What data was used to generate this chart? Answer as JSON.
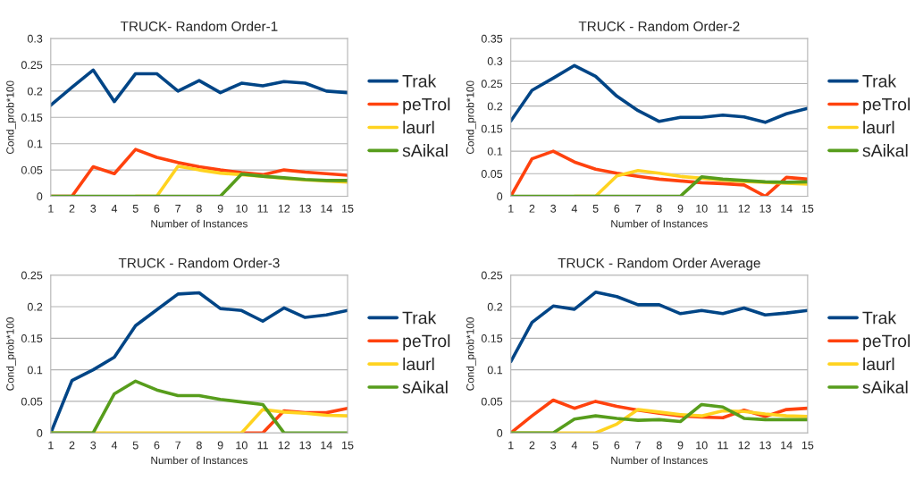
{
  "chart_data": [
    {
      "type": "line",
      "title": "TRUCK- Random Order-1",
      "xlabel": "Number of Instances",
      "ylabel": "Cond_prob*100",
      "categories": [
        "1",
        "2",
        "3",
        "4",
        "5",
        "6",
        "7",
        "8",
        "9",
        "10",
        "11",
        "12",
        "13",
        "14",
        "15"
      ],
      "ylim": [
        0,
        0.3
      ],
      "yticks": [
        0,
        0.05,
        0.1,
        0.15,
        0.2,
        0.25,
        0.3
      ],
      "grid": "y",
      "legend": "right",
      "series": [
        {
          "name": "Trak",
          "color": "#004586",
          "values": [
            0.173,
            0.207,
            0.24,
            0.18,
            0.233,
            0.233,
            0.2,
            0.22,
            0.197,
            0.215,
            0.21,
            0.218,
            0.215,
            0.2,
            0.197
          ]
        },
        {
          "name": "peTrol",
          "color": "#ff420e",
          "values": [
            0,
            0,
            0.056,
            0.043,
            0.089,
            0.074,
            0.064,
            0.056,
            0.05,
            0.045,
            0.041,
            0.05,
            0.046,
            0.043,
            0.04
          ]
        },
        {
          "name": "laurl",
          "color": "#ffd320",
          "values": [
            null,
            null,
            null,
            null,
            0,
            0,
            0.057,
            0.05,
            0.044,
            0.041,
            0.038,
            0.034,
            0.031,
            0.029,
            0.027
          ]
        },
        {
          "name": "sAikal",
          "color": "#579d1c",
          "values": [
            0,
            0,
            0,
            0,
            0,
            0,
            0,
            0,
            0,
            0.042,
            0.038,
            0.035,
            0.032,
            0.03,
            0.03
          ]
        }
      ]
    },
    {
      "type": "line",
      "title": "TRUCK - Random Order-2",
      "xlabel": "Number of Instances",
      "ylabel": "Cond_prob*100",
      "categories": [
        "1",
        "2",
        "3",
        "4",
        "5",
        "6",
        "7",
        "8",
        "9",
        "10",
        "11",
        "12",
        "13",
        "14",
        "15"
      ],
      "ylim": [
        0,
        0.35
      ],
      "yticks": [
        0,
        0.05,
        0.1,
        0.15,
        0.2,
        0.25,
        0.3,
        0.35
      ],
      "grid": "y",
      "legend": "right",
      "series": [
        {
          "name": "Trak",
          "color": "#004586",
          "values": [
            0.167,
            0.235,
            0.262,
            0.29,
            0.266,
            0.222,
            0.19,
            0.166,
            0.175,
            0.175,
            0.18,
            0.176,
            0.164,
            0.183,
            0.195
          ]
        },
        {
          "name": "peTrol",
          "color": "#ff420e",
          "values": [
            0,
            0.083,
            0.1,
            0.076,
            0.06,
            0.051,
            0.044,
            0.038,
            0.034,
            0.03,
            0.028,
            0.025,
            0,
            0.042,
            0.038
          ]
        },
        {
          "name": "laurl",
          "color": "#ffd320",
          "values": [
            null,
            null,
            null,
            0,
            0,
            0.045,
            0.057,
            0.051,
            0.044,
            0.04,
            0.036,
            0.033,
            0.031,
            0.029,
            0.027
          ]
        },
        {
          "name": "sAikal",
          "color": "#579d1c",
          "values": [
            0,
            0,
            0,
            0,
            0,
            0,
            0,
            0,
            0,
            0.043,
            0.038,
            0.035,
            0.032,
            0.031,
            0.032
          ]
        }
      ]
    },
    {
      "type": "line",
      "title": "TRUCK - Random Order-3",
      "xlabel": "Number of Instances",
      "ylabel": "Cond_prob*100",
      "categories": [
        "1",
        "2",
        "3",
        "4",
        "5",
        "6",
        "7",
        "8",
        "9",
        "10",
        "11",
        "12",
        "13",
        "14",
        "15"
      ],
      "ylim": [
        0,
        0.25
      ],
      "yticks": [
        0,
        0.05,
        0.1,
        0.15,
        0.2,
        0.25
      ],
      "grid": "y",
      "legend": "right",
      "series": [
        {
          "name": "Trak",
          "color": "#004586",
          "values": [
            0,
            0.083,
            0.1,
            0.12,
            0.17,
            0.195,
            0.22,
            0.222,
            0.197,
            0.194,
            0.177,
            0.198,
            0.183,
            0.187,
            0.194
          ]
        },
        {
          "name": "peTrol",
          "color": "#ff420e",
          "values": [
            null,
            null,
            null,
            null,
            null,
            null,
            null,
            null,
            null,
            0,
            0,
            0.035,
            0.032,
            0.032,
            0.039
          ]
        },
        {
          "name": "laurl",
          "color": "#ffd320",
          "values": [
            0,
            0,
            0,
            0,
            0,
            0,
            0,
            0,
            0,
            0,
            0.037,
            0.033,
            0.031,
            0.028,
            0.027
          ]
        },
        {
          "name": "sAikal",
          "color": "#579d1c",
          "values": [
            0,
            0,
            0,
            0.062,
            0.082,
            0.068,
            0.059,
            0.059,
            0.053,
            0.049,
            0.045,
            0,
            0,
            0,
            0
          ]
        }
      ]
    },
    {
      "type": "line",
      "title": "TRUCK - Random Order Average",
      "xlabel": "Number of Instances",
      "ylabel": "Cond_prob*100",
      "categories": [
        "1",
        "2",
        "3",
        "4",
        "5",
        "6",
        "7",
        "8",
        "9",
        "10",
        "11",
        "12",
        "13",
        "14",
        "15"
      ],
      "ylim": [
        0,
        0.25
      ],
      "yticks": [
        0,
        0.05,
        0.1,
        0.15,
        0.2,
        0.25
      ],
      "grid": "y",
      "legend": "right",
      "series": [
        {
          "name": "Trak",
          "color": "#004586",
          "values": [
            0.113,
            0.175,
            0.201,
            0.196,
            0.223,
            0.216,
            0.203,
            0.203,
            0.189,
            0.194,
            0.189,
            0.198,
            0.187,
            0.19,
            0.194
          ]
        },
        {
          "name": "peTrol",
          "color": "#ff420e",
          "values": [
            0,
            0.027,
            0.052,
            0.039,
            0.05,
            0.042,
            0.036,
            0.031,
            0.027,
            0.025,
            0.024,
            0.036,
            0.026,
            0.037,
            0.039
          ]
        },
        {
          "name": "laurl",
          "color": "#ffd320",
          "values": [
            0,
            0,
            0,
            0,
            0,
            0.014,
            0.037,
            0.033,
            0.029,
            0.027,
            0.035,
            0.034,
            0.03,
            0.027,
            0.026
          ]
        },
        {
          "name": "sAikal",
          "color": "#579d1c",
          "values": [
            0,
            0,
            0,
            0.022,
            0.027,
            0.023,
            0.02,
            0.021,
            0.018,
            0.045,
            0.041,
            0.023,
            0.021,
            0.021,
            0.021
          ]
        }
      ]
    }
  ]
}
